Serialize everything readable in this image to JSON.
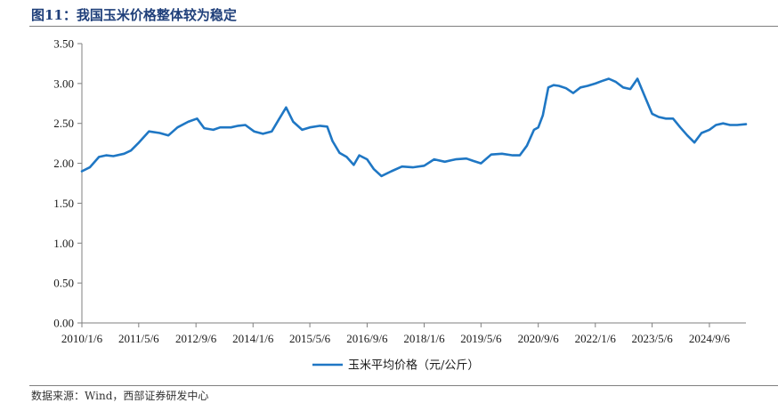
{
  "figure": {
    "title": "图11：我国玉米价格整体较为稳定",
    "source": "数据来源：Wind，西部证券研发中心"
  },
  "colors": {
    "series": "#1f77c4",
    "title": "#1f3f7a",
    "axis": "#7f7f7f"
  },
  "chart_data": {
    "type": "line",
    "title": "",
    "xlabel": "",
    "ylabel": "",
    "ylim": [
      0,
      3.5
    ],
    "yticks": [
      0.0,
      0.5,
      1.0,
      1.5,
      2.0,
      2.5,
      3.0,
      3.5
    ],
    "ytick_labels": [
      "0.00",
      "0.50",
      "1.00",
      "1.50",
      "2.00",
      "2.50",
      "3.00",
      "3.50"
    ],
    "xlim": [
      "2010-01-06",
      "2025-07-15"
    ],
    "xticks": [
      "2010-01-06",
      "2011-05-06",
      "2012-09-06",
      "2014-01-06",
      "2015-05-06",
      "2016-09-06",
      "2018-01-06",
      "2019-05-06",
      "2020-09-06",
      "2022-01-06",
      "2023-05-06",
      "2024-09-06"
    ],
    "xtick_labels": [
      "2010/1/6",
      "2011/5/6",
      "2012/9/6",
      "2014/1/6",
      "2015/5/6",
      "2016/9/6",
      "2018/1/6",
      "2019/5/6",
      "2020/9/6",
      "2022/1/6",
      "2023/5/6",
      "2024/9/6"
    ],
    "grid": false,
    "legend": "bottom-center",
    "series": [
      {
        "name": "玉米平均价格（元/公斤）",
        "x": [
          "2010-01-06",
          "2010-03-15",
          "2010-06-01",
          "2010-08-01",
          "2010-10-01",
          "2011-01-01",
          "2011-03-01",
          "2011-05-01",
          "2011-08-01",
          "2011-11-01",
          "2012-01-15",
          "2012-04-01",
          "2012-07-01",
          "2012-09-15",
          "2012-11-15",
          "2013-02-01",
          "2013-04-01",
          "2013-07-01",
          "2013-09-01",
          "2013-11-01",
          "2014-01-15",
          "2014-04-01",
          "2014-06-15",
          "2014-08-15",
          "2014-10-15",
          "2014-12-15",
          "2015-03-01",
          "2015-05-06",
          "2015-08-01",
          "2015-10-01",
          "2015-11-15",
          "2016-01-15",
          "2016-03-15",
          "2016-05-15",
          "2016-07-01",
          "2016-09-06",
          "2016-11-01",
          "2017-01-06",
          "2017-04-01",
          "2017-07-01",
          "2017-10-01",
          "2018-01-06",
          "2018-04-01",
          "2018-07-01",
          "2018-10-01",
          "2019-01-01",
          "2019-03-01",
          "2019-05-06",
          "2019-08-01",
          "2019-11-01",
          "2020-02-01",
          "2020-04-01",
          "2020-06-01",
          "2020-08-01",
          "2020-09-06",
          "2020-10-15",
          "2020-12-01",
          "2021-01-15",
          "2021-03-01",
          "2021-05-01",
          "2021-07-01",
          "2021-09-01",
          "2021-11-01",
          "2022-01-06",
          "2022-03-01",
          "2022-05-01",
          "2022-07-01",
          "2022-09-01",
          "2022-11-01",
          "2023-01-01",
          "2023-03-01",
          "2023-05-06",
          "2023-07-01",
          "2023-09-01",
          "2023-11-01",
          "2024-01-01",
          "2024-03-01",
          "2024-05-01",
          "2024-07-01",
          "2024-09-06",
          "2024-11-01",
          "2025-01-01",
          "2025-03-01",
          "2025-05-01",
          "2025-07-15"
        ],
        "values": [
          1.9,
          1.95,
          2.08,
          2.1,
          2.09,
          2.12,
          2.16,
          2.25,
          2.4,
          2.38,
          2.35,
          2.45,
          2.52,
          2.56,
          2.44,
          2.42,
          2.45,
          2.45,
          2.47,
          2.48,
          2.4,
          2.37,
          2.4,
          2.55,
          2.7,
          2.52,
          2.42,
          2.45,
          2.47,
          2.46,
          2.28,
          2.13,
          2.08,
          1.98,
          2.1,
          2.05,
          1.93,
          1.84,
          1.9,
          1.96,
          1.95,
          1.97,
          2.05,
          2.02,
          2.05,
          2.06,
          2.03,
          2.0,
          2.11,
          2.12,
          2.1,
          2.1,
          2.22,
          2.42,
          2.45,
          2.6,
          2.95,
          2.98,
          2.97,
          2.94,
          2.88,
          2.95,
          2.97,
          3.0,
          3.03,
          3.06,
          3.02,
          2.95,
          2.93,
          3.06,
          2.85,
          2.62,
          2.58,
          2.56,
          2.56,
          2.45,
          2.35,
          2.26,
          2.38,
          2.42,
          2.48,
          2.5,
          2.48,
          2.48,
          2.49
        ]
      }
    ]
  }
}
